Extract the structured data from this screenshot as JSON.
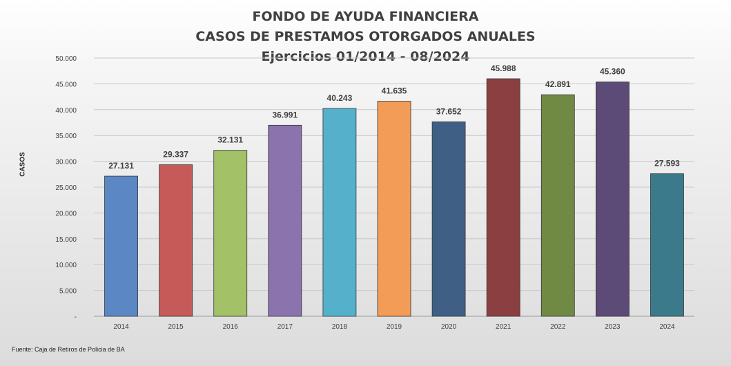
{
  "chart_data": {
    "type": "bar",
    "title": "FONDO DE AYUDA FINANCIERA",
    "subtitle": "CASOS DE PRESTAMOS OTORGADOS ANUALES",
    "subtitle2": "Ejercicios 01/2014 - 08/2024",
    "ylabel": "CASOS",
    "xlabel": "",
    "ylim": [
      0,
      50000
    ],
    "yticks": [
      "-",
      "5.000",
      "10.000",
      "15.000",
      "20.000",
      "25.000",
      "30.000",
      "35.000",
      "40.000",
      "45.000",
      "50.000"
    ],
    "categories": [
      "2014",
      "2015",
      "2016",
      "2017",
      "2018",
      "2019",
      "2020",
      "2021",
      "2022",
      "2023",
      "2024"
    ],
    "values": [
      27131,
      29337,
      32131,
      36991,
      40243,
      41635,
      37652,
      45988,
      42891,
      45360,
      27593
    ],
    "value_labels": [
      "27.131",
      "29.337",
      "32.131",
      "36.991",
      "40.243",
      "41.635",
      "37.652",
      "45.988",
      "42.891",
      "45.360",
      "27.593"
    ],
    "colors": [
      "#5b87c5",
      "#c55a58",
      "#a3c167",
      "#8b73ae",
      "#55b1cb",
      "#f39c57",
      "#3f5f85",
      "#8b3f41",
      "#708a43",
      "#5c4a77",
      "#3b7a8a"
    ],
    "grid": true,
    "legend": "none",
    "source": "Fuente: Caja de Retiros de Policia de BA"
  }
}
